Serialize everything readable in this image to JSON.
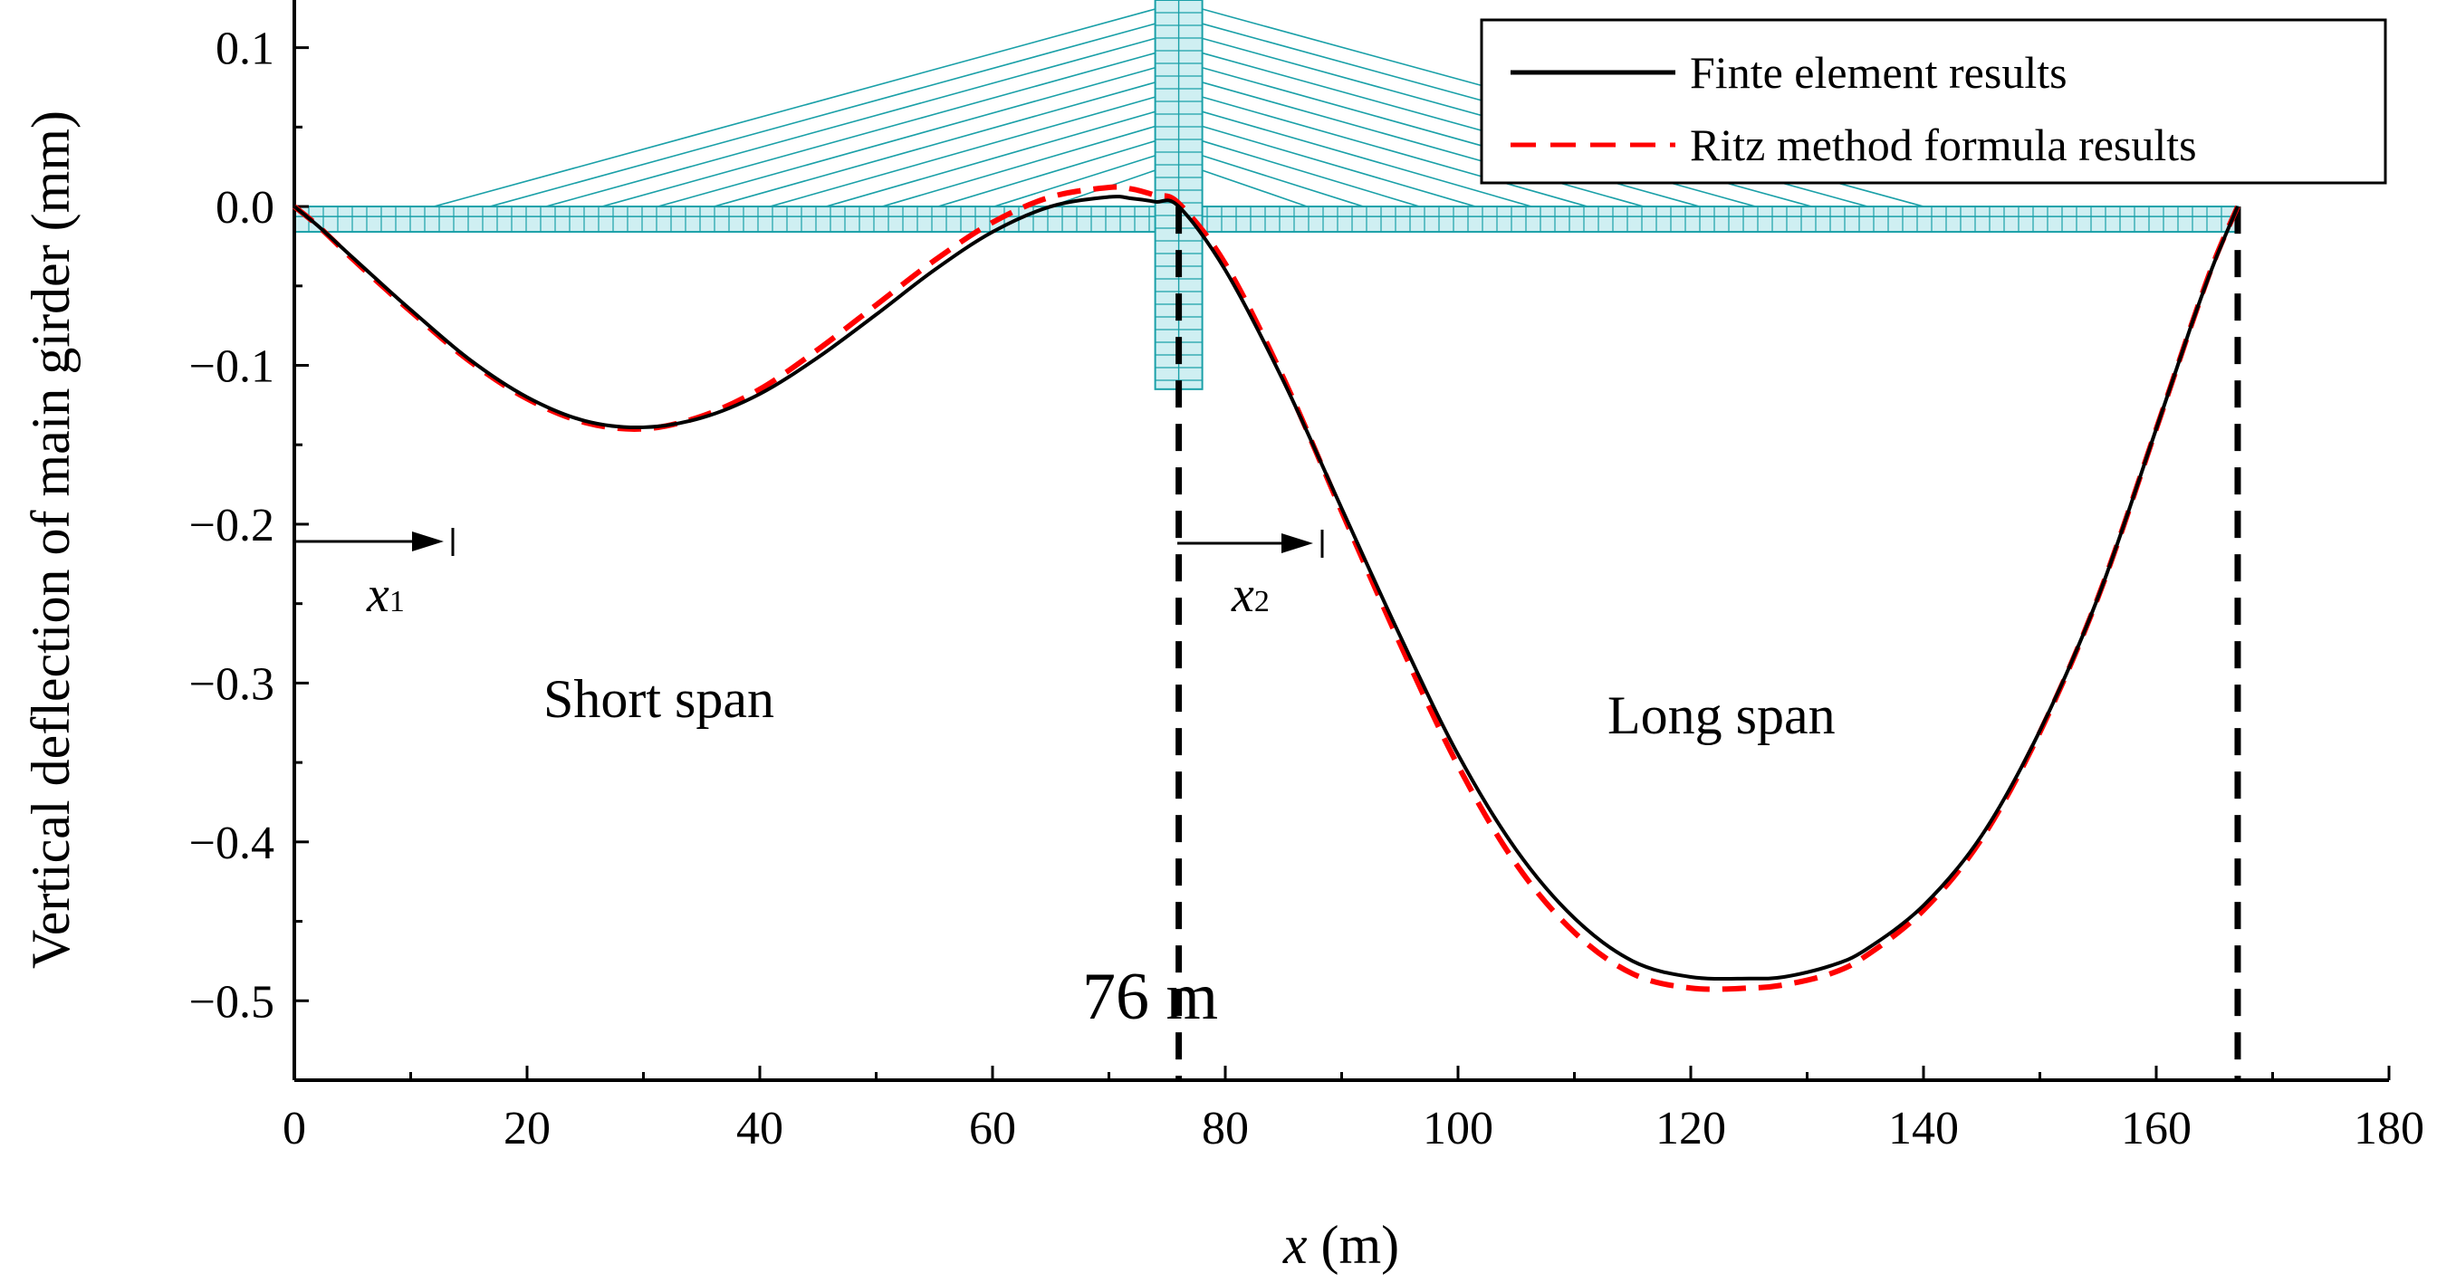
{
  "chart_data": {
    "type": "line",
    "title": "",
    "xlabel_italic": "x",
    "xlabel_rest": " (m)",
    "ylabel": "Vertical deflection of main girder (mm)",
    "xlim": [
      0,
      180
    ],
    "ylim": [
      -0.55,
      0.13
    ],
    "xticks": [
      0,
      20,
      40,
      60,
      80,
      100,
      120,
      140,
      160,
      180
    ],
    "xtick_labels": [
      "0",
      "20",
      "40",
      "60",
      "80",
      "100",
      "120",
      "140",
      "160",
      "180"
    ],
    "yticks": [
      0.1,
      0.0,
      -0.1,
      -0.2,
      -0.3,
      -0.4,
      -0.5
    ],
    "ytick_labels": [
      "0.1",
      "0.0",
      "−0.1",
      "−0.2",
      "−0.3",
      "−0.4",
      "−0.5"
    ],
    "legend_position": "top-right",
    "series": [
      {
        "name": "Finte element results",
        "color": "#000000",
        "style": "solid",
        "x": [
          0,
          2,
          5,
          8,
          10,
          15,
          20,
          25,
          30,
          35,
          40,
          45,
          50,
          55,
          60,
          65,
          70,
          72,
          74,
          76,
          80,
          85,
          90,
          95,
          100,
          105,
          110,
          115,
          120,
          125,
          128,
          132,
          135,
          140,
          145,
          150,
          155,
          160,
          163,
          165,
          167
        ],
        "y": [
          0,
          -0.012,
          -0.032,
          -0.052,
          -0.065,
          -0.096,
          -0.12,
          -0.135,
          -0.139,
          -0.133,
          -0.118,
          -0.095,
          -0.068,
          -0.04,
          -0.016,
          0.0,
          0.006,
          0.005,
          0.003,
          0.0,
          -0.04,
          -0.11,
          -0.19,
          -0.27,
          -0.345,
          -0.405,
          -0.448,
          -0.475,
          -0.485,
          -0.486,
          -0.485,
          -0.478,
          -0.468,
          -0.44,
          -0.396,
          -0.33,
          -0.246,
          -0.14,
          -0.075,
          -0.035,
          0
        ]
      },
      {
        "name": "Ritz method formula results",
        "color": "#ff0000",
        "style": "dashed",
        "x": [
          0,
          2,
          5,
          8,
          10,
          15,
          20,
          25,
          30,
          35,
          40,
          45,
          50,
          55,
          60,
          65,
          70,
          72,
          74,
          76,
          80,
          85,
          90,
          95,
          100,
          105,
          110,
          115,
          120,
          125,
          128,
          132,
          135,
          140,
          145,
          150,
          155,
          160,
          163,
          165,
          167
        ],
        "y": [
          0,
          -0.012,
          -0.033,
          -0.053,
          -0.066,
          -0.097,
          -0.121,
          -0.136,
          -0.14,
          -0.132,
          -0.115,
          -0.09,
          -0.062,
          -0.034,
          -0.01,
          0.006,
          0.012,
          0.011,
          0.007,
          0.002,
          -0.036,
          -0.108,
          -0.192,
          -0.275,
          -0.352,
          -0.414,
          -0.457,
          -0.483,
          -0.492,
          -0.492,
          -0.49,
          -0.483,
          -0.472,
          -0.443,
          -0.398,
          -0.331,
          -0.246,
          -0.14,
          -0.075,
          -0.034,
          0
        ]
      }
    ],
    "reference_lines": [
      {
        "x": 76,
        "color": "#000000",
        "style": "dashed"
      },
      {
        "x": 167,
        "color": "#000000",
        "style": "dashed"
      }
    ],
    "annotations": {
      "short_span": "Short span",
      "long_span": "Long span",
      "pylon_label": "76 m",
      "pylon_label_color": "#ff0000",
      "x1_symbol": "x",
      "x1_sub": "1",
      "x2_symbol": "x",
      "x2_sub": "2"
    },
    "bridge": {
      "deck_start": 0,
      "deck_end": 167,
      "pylon_x": 76,
      "pylon_top": 0.13,
      "pylon_bottom": -0.115,
      "cable_short_start": 12,
      "cable_long_end": 140,
      "color": "#1aa0a8",
      "fill": "#cfeff2"
    }
  }
}
